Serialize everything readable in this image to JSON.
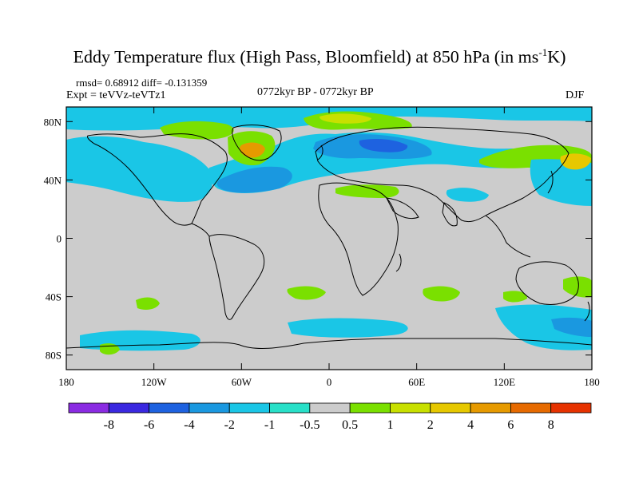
{
  "title": {
    "main": "Eddy Temperature flux (High Pass, Bloomfield) at 850 hPa (in ms",
    "sup": "-1",
    "tail": "K)"
  },
  "info": {
    "rmsd": "rmsd= 0.68912 diff= -0.131359",
    "expt": "Expt = teVVz-teVTz1",
    "period": "0772kyr BP - 0772kyr BP",
    "season": "DJF"
  },
  "axes": {
    "y_ticks": [
      {
        "lat": 80,
        "label": "80N"
      },
      {
        "lat": 40,
        "label": "40N"
      },
      {
        "lat": 0,
        "label": "0"
      },
      {
        "lat": -40,
        "label": "40S"
      },
      {
        "lat": -80,
        "label": "80S"
      }
    ],
    "x_ticks": [
      {
        "lon": -180,
        "label": "180"
      },
      {
        "lon": -120,
        "label": "120W"
      },
      {
        "lon": -60,
        "label": "60W"
      },
      {
        "lon": 0,
        "label": "0"
      },
      {
        "lon": 60,
        "label": "60E"
      },
      {
        "lon": 120,
        "label": "120E"
      },
      {
        "lon": 180,
        "label": "180"
      }
    ],
    "lon_range": [
      -180,
      180
    ],
    "lat_range": [
      -90,
      90
    ]
  },
  "colorbar": {
    "colors": [
      "#8a2be2",
      "#3a28e0",
      "#1e62e0",
      "#1a98e0",
      "#1ac6e6",
      "#28e0c8",
      "#cccccc",
      "#7ae000",
      "#c8e000",
      "#e6c800",
      "#e69a00",
      "#e66a00",
      "#e63200"
    ],
    "labels": [
      "-8",
      "-6",
      "-4",
      "-2",
      "-1",
      "-0.5",
      "0.5",
      "1",
      "2",
      "4",
      "6",
      "8"
    ]
  },
  "colors": {
    "background_field": "#cccccc"
  }
}
